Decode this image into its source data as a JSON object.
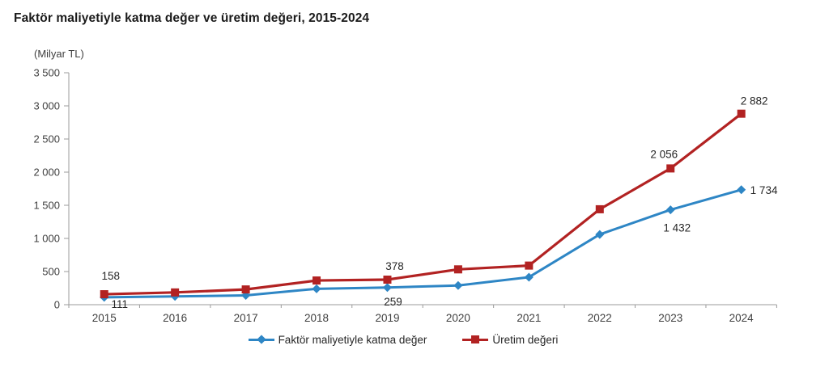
{
  "title": "Faktör maliyetiyle katma değer ve üretim değeri, 2015-2024",
  "chart_data": {
    "type": "line",
    "unit_label": "(Milyar TL)",
    "categories": [
      "2015",
      "2016",
      "2017",
      "2018",
      "2019",
      "2020",
      "2021",
      "2022",
      "2023",
      "2024"
    ],
    "series": [
      {
        "name": "Faktör maliyetiyle katma değer",
        "color": "#2E86C5",
        "marker": "diamond",
        "values": [
          111,
          125,
          140,
          240,
          259,
          290,
          415,
          1060,
          1432,
          1734
        ],
        "point_labels": {
          "2015": "111",
          "2019": "259",
          "2023": "1 432",
          "2024": "1 734"
        }
      },
      {
        "name": "Üretim değeri",
        "color": "#B22222",
        "marker": "square",
        "values": [
          158,
          185,
          230,
          365,
          378,
          533,
          590,
          1440,
          2056,
          2882
        ],
        "point_labels": {
          "2015": "158",
          "2019": "378",
          "2023": "2 056",
          "2024": "2 882"
        }
      }
    ],
    "ylim": [
      0,
      3500
    ],
    "ytick_step": 500,
    "ytick_labels": [
      "0",
      "500",
      "1 000",
      "1 500",
      "2 000",
      "2 500",
      "3 000",
      "3 500"
    ],
    "grid": false,
    "legend_position": "bottom",
    "axis_color": "#9b9b9b",
    "tick_text_color": "#404040",
    "label_text_color": "#262626"
  }
}
